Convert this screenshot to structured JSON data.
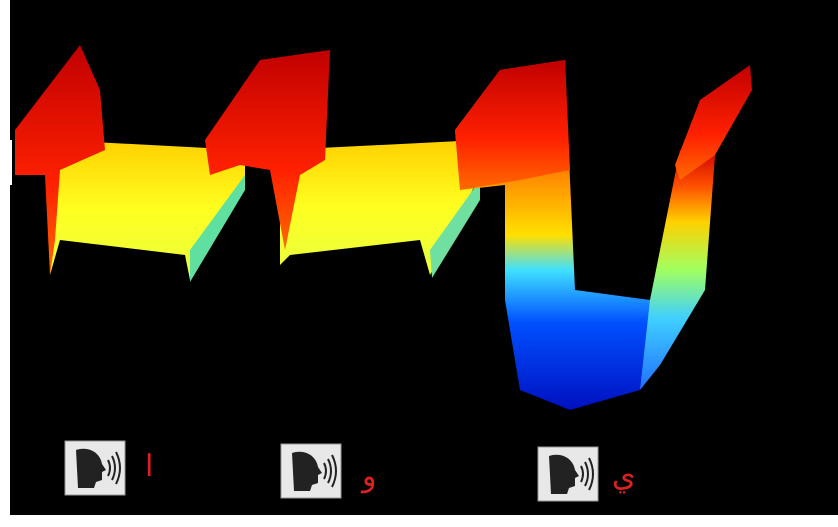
{
  "buttons": [
    {
      "label": "ا"
    },
    {
      "label": "و"
    },
    {
      "label": "ي"
    }
  ]
}
